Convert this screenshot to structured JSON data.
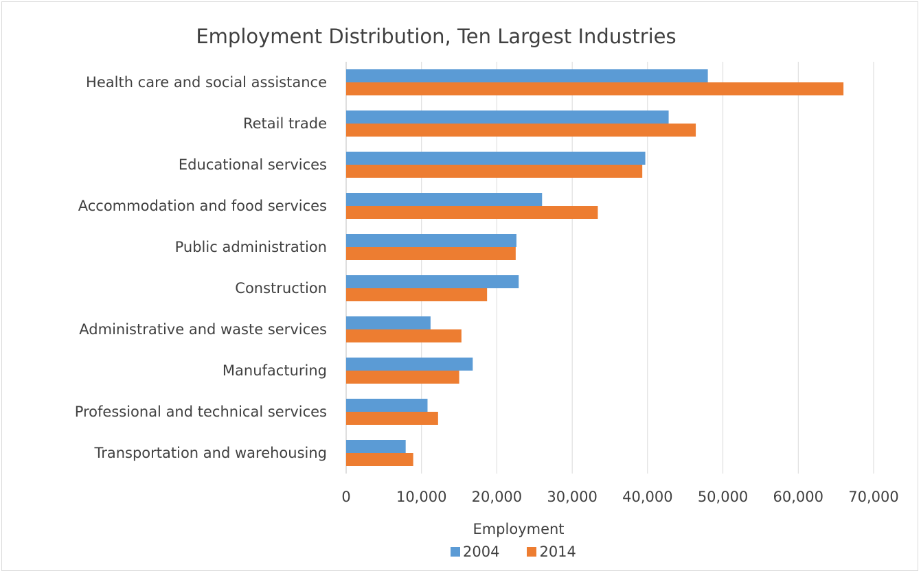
{
  "chart_data": {
    "type": "bar",
    "orientation": "horizontal",
    "title": "Employment Distribution, Ten Largest Industries",
    "xlabel": "Employment",
    "ylabel": "",
    "xlim": [
      0,
      70000
    ],
    "x_ticks": [
      "0",
      "10,000",
      "20,000",
      "30,000",
      "40,000",
      "50,000",
      "60,000",
      "70,000"
    ],
    "grid": true,
    "legend_position": "bottom",
    "categories": [
      "Health care and social assistance",
      "Retail trade",
      "Educational services",
      "Accommodation and food services",
      "Public administration",
      "Construction",
      "Administrative and waste services",
      "Manufacturing",
      "Professional and technical services",
      "Transportation and warehousing"
    ],
    "series": [
      {
        "name": "2004",
        "color": "#5b9bd5",
        "values": [
          48000,
          42800,
          39700,
          26000,
          22600,
          22900,
          11200,
          16800,
          10800,
          7900
        ]
      },
      {
        "name": "2014",
        "color": "#ed7d31",
        "values": [
          66000,
          46400,
          39300,
          33400,
          22500,
          18700,
          15300,
          15000,
          12200,
          8900
        ]
      }
    ]
  }
}
